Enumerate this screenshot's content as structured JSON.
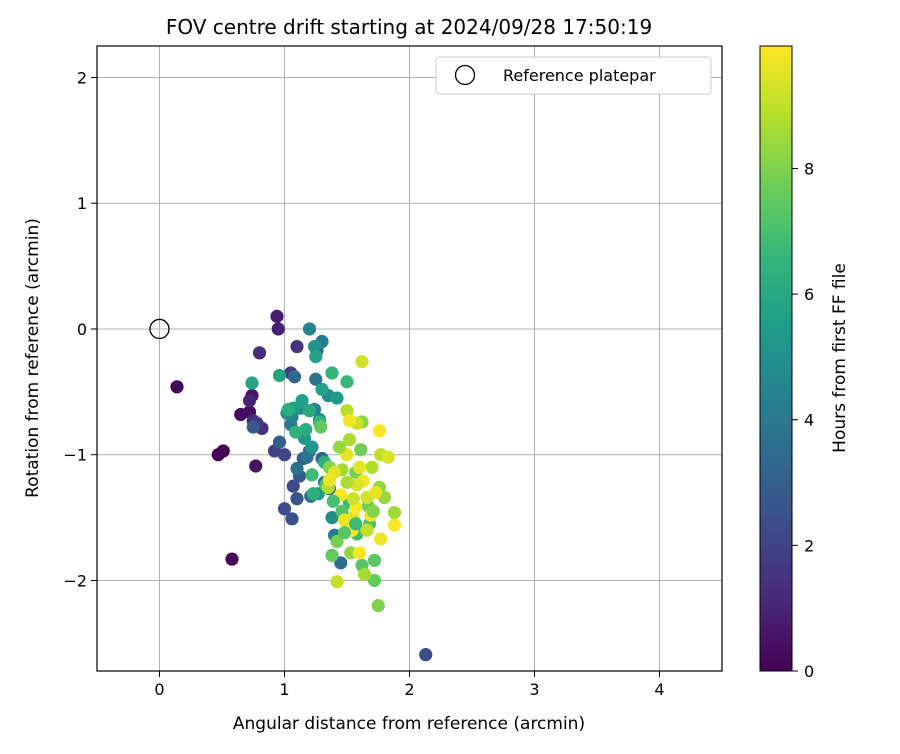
{
  "chart_data": {
    "type": "scatter",
    "title": "FOV centre drift starting at 2024/09/28 17:50:19",
    "xlabel": "Angular distance from reference (arcmin)",
    "ylabel": "Rotation from reference (arcmin)",
    "xlim": [
      -0.5,
      4.5
    ],
    "ylim": [
      -2.72,
      2.25
    ],
    "xticks": [
      0,
      1,
      2,
      3,
      4
    ],
    "yticks": [
      -2,
      -1,
      0,
      1,
      2
    ],
    "xtick_labels": [
      "0",
      "1",
      "2",
      "3",
      "4"
    ],
    "ytick_labels": [
      "−2",
      "−1",
      "0",
      "1",
      "2"
    ],
    "grid": true,
    "legend": {
      "position": "top-right",
      "label": "Reference platepar"
    },
    "reference_point": {
      "x": 0.0,
      "y": 0.0
    },
    "colorbar": {
      "label": "Hours from first FF file",
      "colormap": "viridis",
      "range": [
        0,
        9.95
      ],
      "ticks": [
        0,
        2,
        4,
        6,
        8
      ],
      "tick_labels": [
        "0",
        "2",
        "4",
        "6",
        "8"
      ]
    },
    "colormap_stops": [
      "#440154",
      "#482878",
      "#3e4989",
      "#31688e",
      "#26828e",
      "#1f9e89",
      "#35b779",
      "#6ece58",
      "#b5de2b",
      "#fde725"
    ],
    "points": [
      [
        0.14,
        -0.46,
        0.1
      ],
      [
        0.47,
        -1.0,
        0.1
      ],
      [
        0.51,
        -0.97,
        0.1
      ],
      [
        0.58,
        -1.83,
        0.2
      ],
      [
        0.65,
        -0.68,
        0.3
      ],
      [
        0.72,
        -0.66,
        0.4
      ],
      [
        0.74,
        -0.53,
        0.5
      ],
      [
        0.77,
        -1.09,
        0.5
      ],
      [
        0.94,
        0.1,
        0.8
      ],
      [
        0.95,
        0.0,
        0.9
      ],
      [
        0.72,
        -0.57,
        1.0
      ],
      [
        0.75,
        -0.73,
        1.2
      ],
      [
        0.8,
        -0.19,
        1.3
      ],
      [
        0.82,
        -0.79,
        1.3
      ],
      [
        1.1,
        -0.14,
        1.5
      ],
      [
        0.78,
        -0.75,
        1.6
      ],
      [
        1.05,
        -0.35,
        1.8
      ],
      [
        0.92,
        -0.97,
        2.0
      ],
      [
        1.0,
        -1.0,
        2.1
      ],
      [
        1.07,
        -1.25,
        2.2
      ],
      [
        2.13,
        -2.59,
        2.3
      ],
      [
        1.0,
        -1.43,
        2.4
      ],
      [
        1.06,
        -1.51,
        2.5
      ],
      [
        1.1,
        -1.35,
        2.6
      ],
      [
        0.75,
        -0.78,
        2.7
      ],
      [
        1.12,
        -1.17,
        2.8
      ],
      [
        1.15,
        -1.03,
        2.9
      ],
      [
        0.96,
        -0.9,
        3.0
      ],
      [
        1.2,
        -0.97,
        3.1
      ],
      [
        1.3,
        -1.03,
        3.2
      ],
      [
        1.08,
        -0.38,
        3.3
      ],
      [
        1.21,
        -1.33,
        3.4
      ],
      [
        1.26,
        -0.17,
        3.5
      ],
      [
        1.32,
        -1.22,
        3.6
      ],
      [
        1.45,
        -1.86,
        3.6
      ],
      [
        1.1,
        -1.11,
        3.7
      ],
      [
        1.25,
        -0.4,
        3.8
      ],
      [
        1.18,
        -1.02,
        3.8
      ],
      [
        1.36,
        -1.27,
        3.9
      ],
      [
        1.05,
        -0.76,
        4.0
      ],
      [
        1.4,
        -1.64,
        4.1
      ],
      [
        1.24,
        -0.64,
        4.2
      ],
      [
        1.3,
        -0.1,
        4.3
      ],
      [
        1.06,
        -0.7,
        4.4
      ],
      [
        1.2,
        0.0,
        4.5
      ],
      [
        1.28,
        -0.72,
        4.6
      ],
      [
        1.13,
        -0.63,
        4.7
      ],
      [
        1.35,
        -0.53,
        4.8
      ],
      [
        1.38,
        -1.5,
        4.9
      ],
      [
        1.02,
        -0.67,
        5.0
      ],
      [
        1.24,
        -0.14,
        5.1
      ],
      [
        1.22,
        -0.94,
        5.2
      ],
      [
        1.16,
        -0.87,
        5.3
      ],
      [
        1.27,
        -1.31,
        5.3
      ],
      [
        1.42,
        -0.55,
        5.4
      ],
      [
        1.07,
        -0.63,
        5.5
      ],
      [
        1.14,
        -0.57,
        5.6
      ],
      [
        1.3,
        -0.48,
        5.7
      ],
      [
        1.25,
        -0.22,
        5.8
      ],
      [
        0.96,
        -0.37,
        5.8
      ],
      [
        0.74,
        -0.43,
        5.9
      ],
      [
        1.2,
        -0.65,
        6.0
      ],
      [
        1.17,
        -0.8,
        6.1
      ],
      [
        1.03,
        -0.64,
        6.2
      ],
      [
        1.32,
        -1.06,
        6.3
      ],
      [
        1.23,
        -1.31,
        6.3
      ],
      [
        1.09,
        -0.82,
        6.4
      ],
      [
        1.38,
        -0.35,
        6.5
      ],
      [
        1.28,
        -0.74,
        6.5
      ],
      [
        1.52,
        -1.38,
        6.6
      ],
      [
        1.5,
        -0.42,
        6.7
      ],
      [
        1.22,
        -1.16,
        6.8
      ],
      [
        1.58,
        -1.63,
        6.9
      ],
      [
        1.33,
        -1.24,
        7.0
      ],
      [
        1.68,
        -1.55,
        7.1
      ],
      [
        1.46,
        -1.45,
        7.2
      ],
      [
        1.62,
        -1.88,
        7.3
      ],
      [
        1.72,
        -1.84,
        7.4
      ],
      [
        1.29,
        -0.78,
        7.5
      ],
      [
        1.38,
        -1.8,
        7.5
      ],
      [
        1.72,
        -2.0,
        7.6
      ],
      [
        1.67,
        -1.41,
        7.7
      ],
      [
        1.57,
        -1.14,
        7.8
      ],
      [
        1.42,
        -1.69,
        7.9
      ],
      [
        1.75,
        -2.2,
        8.0
      ],
      [
        1.36,
        -1.1,
        8.1
      ],
      [
        1.62,
        -0.74,
        8.2
      ],
      [
        1.76,
        -1.26,
        8.3
      ],
      [
        1.53,
        -1.78,
        8.3
      ],
      [
        1.8,
        -1.34,
        8.4
      ],
      [
        1.88,
        -1.46,
        8.5
      ],
      [
        1.46,
        -1.12,
        8.6
      ],
      [
        1.64,
        -1.95,
        8.6
      ],
      [
        1.52,
        -0.88,
        8.7
      ],
      [
        1.7,
        -1.1,
        8.8
      ],
      [
        1.35,
        -1.26,
        8.8
      ],
      [
        1.5,
        -0.65,
        8.9
      ],
      [
        1.77,
        -1.0,
        9.0
      ],
      [
        1.42,
        -2.01,
        9.1
      ],
      [
        1.58,
        -0.75,
        9.2
      ],
      [
        1.66,
        -1.34,
        9.3
      ],
      [
        1.62,
        -0.26,
        9.3
      ],
      [
        1.83,
        -1.02,
        9.4
      ],
      [
        1.55,
        -1.5,
        9.5
      ],
      [
        1.4,
        -1.14,
        9.5
      ],
      [
        1.6,
        -1.1,
        9.6
      ],
      [
        1.73,
        -1.3,
        9.6
      ],
      [
        1.48,
        -1.52,
        9.7
      ],
      [
        1.77,
        -1.67,
        9.7
      ],
      [
        1.52,
        -0.73,
        9.8
      ],
      [
        1.63,
        -1.21,
        9.8
      ],
      [
        1.57,
        -1.42,
        9.9
      ],
      [
        1.45,
        -1.32,
        9.9
      ],
      [
        1.88,
        -1.56,
        9.9
      ],
      [
        1.76,
        -0.81,
        9.95
      ],
      [
        1.54,
        -1.6,
        9.95
      ],
      [
        1.6,
        -1.78,
        9.9
      ],
      [
        1.69,
        -1.48,
        9.8
      ],
      [
        1.36,
        -1.2,
        9.7
      ],
      [
        1.5,
        -1.0,
        9.6
      ],
      [
        1.58,
        -1.24,
        9.4
      ],
      [
        1.55,
        -1.35,
        9.2
      ],
      [
        1.66,
        -1.6,
        9.0
      ],
      [
        1.5,
        -1.22,
        8.7
      ],
      [
        1.44,
        -0.94,
        8.4
      ],
      [
        1.71,
        -1.45,
        8.1
      ],
      [
        1.61,
        -0.96,
        7.8
      ],
      [
        1.48,
        -1.62,
        7.3
      ],
      [
        1.39,
        -1.37,
        7.0
      ],
      [
        1.57,
        -1.55,
        6.8
      ]
    ]
  }
}
